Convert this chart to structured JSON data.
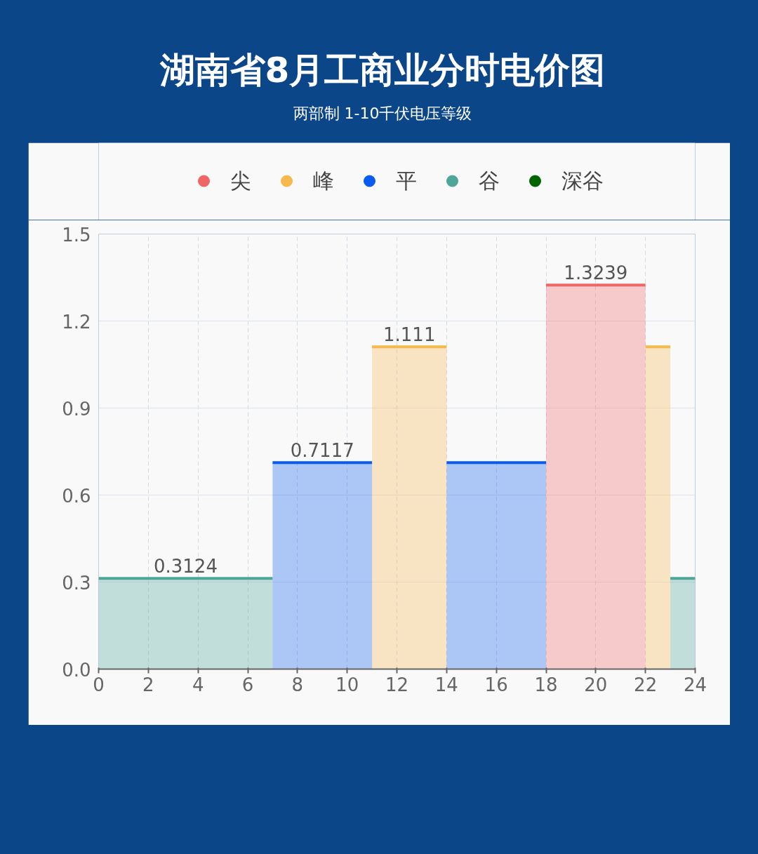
{
  "chart_data": {
    "type": "area",
    "title": "湖南省8月工商业分时电价图",
    "subtitle": "两部制 1-10千伏电压等级",
    "series": [
      {
        "name": "尖",
        "color": "#ee6666",
        "x": [
          18,
          22
        ],
        "values": [
          1.3239,
          1.3239
        ]
      },
      {
        "name": "峰",
        "color": "#f5b94e",
        "x": [
          11,
          14
        ],
        "values": [
          1.111,
          1.111
        ]
      },
      {
        "color": "#f5b94e",
        "x": [
          22,
          23
        ],
        "values": [
          1.111,
          1.111
        ]
      },
      {
        "name": "平",
        "color": "#0a5cf0",
        "x": [
          7,
          11
        ],
        "values": [
          0.7117,
          0.7117
        ]
      },
      {
        "color": "#0a5cf0",
        "x": [
          14,
          18
        ],
        "values": [
          0.7117,
          0.7117
        ]
      },
      {
        "name": "谷",
        "color": "#4fa597",
        "x": [
          0,
          7
        ],
        "values": [
          0.3124,
          0.3124
        ]
      },
      {
        "color": "#4fa597",
        "x": [
          23,
          24
        ],
        "values": [
          0.3124,
          0.3124
        ]
      },
      {
        "name": "深谷",
        "color": "#006400"
      }
    ],
    "annotations": [
      {
        "text": "0.3124",
        "x": 3.5,
        "y": 0.3124
      },
      {
        "text": "0.7117",
        "x": 9,
        "y": 0.7117
      },
      {
        "text": "1.111",
        "x": 12.5,
        "y": 1.111
      },
      {
        "text": "1.3239",
        "x": 20,
        "y": 1.3239
      }
    ],
    "xlim": [
      0,
      24
    ],
    "xticks": [
      0,
      2,
      4,
      6,
      8,
      10,
      12,
      14,
      16,
      18,
      20,
      22,
      24
    ],
    "ylim": [
      0,
      1.5
    ],
    "yticks": [
      {
        "value": 0,
        "label": "0.0"
      },
      {
        "value": 0.3,
        "label": "0.3"
      },
      {
        "value": 0.6,
        "label": "0.6"
      },
      {
        "value": 0.9,
        "label": "0.9"
      },
      {
        "value": 1.2,
        "label": "1.2"
      },
      {
        "value": 1.5,
        "label": "1.5"
      }
    ],
    "grid": true,
    "legend": "top",
    "line_style": "solid"
  }
}
